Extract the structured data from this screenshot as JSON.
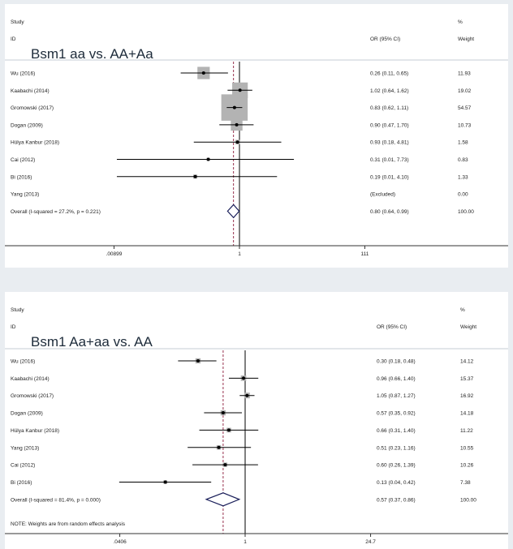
{
  "chart_data": [
    {
      "type": "forest",
      "title": "Bsm1 aa vs. AA+Aa",
      "header": {
        "study": "Study",
        "id": "ID",
        "effect": "OR (95% CI)",
        "pct": "%",
        "weight": "Weight"
      },
      "scale": "log",
      "ticks": [
        ".00899",
        "1",
        "111"
      ],
      "tick_values": [
        0.00899,
        1,
        111
      ],
      "studies": [
        {
          "label": "Wu  (2016)",
          "or": 0.26,
          "lo": 0.11,
          "hi": 0.65,
          "ci_text": "0.26 (0.11, 0.65)",
          "weight": "11.93"
        },
        {
          "label": "Kaabachi  (2014)",
          "or": 1.02,
          "lo": 0.64,
          "hi": 1.62,
          "ci_text": "1.02 (0.64, 1.62)",
          "weight": "19.02"
        },
        {
          "label": "Gromowski   (2017)",
          "or": 0.83,
          "lo": 0.62,
          "hi": 1.11,
          "ci_text": "0.83 (0.62, 1.11)",
          "weight": "54.57"
        },
        {
          "label": "Dogan  (2009)",
          "or": 0.9,
          "lo": 0.47,
          "hi": 1.7,
          "ci_text": "0.90 (0.47, 1.70)",
          "weight": "10.73"
        },
        {
          "label": "Hülya Kanbur  (2018)",
          "or": 0.93,
          "lo": 0.18,
          "hi": 4.81,
          "ci_text": "0.93 (0.18, 4.81)",
          "weight": "1.58"
        },
        {
          "label": "Cai (2012)",
          "or": 0.31,
          "lo": 0.01,
          "hi": 7.73,
          "ci_text": "0.31 (0.01, 7.73)",
          "weight": "0.83"
        },
        {
          "label": "Bi (2016)",
          "or": 0.19,
          "lo": 0.01,
          "hi": 4.1,
          "ci_text": "0.19 (0.01, 4.10)",
          "weight": "1.33"
        },
        {
          "label": "Yang (2013)",
          "or": null,
          "lo": null,
          "hi": null,
          "ci_text": "(Excluded)",
          "weight": "0.00"
        }
      ],
      "overall": {
        "label": "Overall  (I-squared = 27.2%, p = 0.221)",
        "or": 0.8,
        "lo": 0.64,
        "hi": 0.99,
        "ci_text": "0.80 (0.64, 0.99)",
        "weight": "100.00"
      },
      "note": ""
    },
    {
      "type": "forest",
      "title": "Bsm1 Aa+aa vs. AA",
      "header": {
        "study": "Study",
        "id": "ID",
        "effect": "OR (95% CI)",
        "pct": "%",
        "weight": "Weight"
      },
      "scale": "log",
      "ticks": [
        ".0406",
        "1",
        "24.7"
      ],
      "tick_values": [
        0.0406,
        1,
        24.7
      ],
      "studies": [
        {
          "label": "Wu  (2016)",
          "or": 0.3,
          "lo": 0.18,
          "hi": 0.48,
          "ci_text": "0.30 (0.18, 0.48)",
          "weight": "14.12"
        },
        {
          "label": "Kaabachi  (2014)",
          "or": 0.96,
          "lo": 0.66,
          "hi": 1.4,
          "ci_text": "0.96 (0.66, 1.40)",
          "weight": "15.37"
        },
        {
          "label": "Gromowski   (2017)",
          "or": 1.05,
          "lo": 0.87,
          "hi": 1.27,
          "ci_text": "1.05 (0.87, 1.27)",
          "weight": "16.92"
        },
        {
          "label": "Dogan  (2009)",
          "or": 0.57,
          "lo": 0.35,
          "hi": 0.92,
          "ci_text": "0.57 (0.35, 0.92)",
          "weight": "14.18"
        },
        {
          "label": "Hülya Kanbur  (2018)",
          "or": 0.66,
          "lo": 0.31,
          "hi": 1.4,
          "ci_text": "0.66 (0.31, 1.40)",
          "weight": "11.22"
        },
        {
          "label": "Yang (2013)",
          "or": 0.51,
          "lo": 0.23,
          "hi": 1.16,
          "ci_text": "0.51 (0.23, 1.16)",
          "weight": "10.55"
        },
        {
          "label": "Cai (2012)",
          "or": 0.6,
          "lo": 0.26,
          "hi": 1.39,
          "ci_text": "0.60 (0.26, 1.39)",
          "weight": "10.26"
        },
        {
          "label": "Bi (2016)",
          "or": 0.13,
          "lo": 0.04,
          "hi": 0.42,
          "ci_text": "0.13 (0.04, 0.42)",
          "weight": "7.38"
        }
      ],
      "overall": {
        "label": "Overall  (I-squared = 81.4%, p = 0.000)",
        "or": 0.57,
        "lo": 0.37,
        "hi": 0.86,
        "ci_text": "0.57 (0.37, 0.86)",
        "weight": "100.00"
      },
      "note": "NOTE: Weights are from random effects analysis"
    }
  ],
  "colors": {
    "box": "#b3b3b3",
    "diamond": "#1a1f5a",
    "dashed": "#8b1a3a",
    "line": "#000000",
    "background": "#e9edf1"
  }
}
